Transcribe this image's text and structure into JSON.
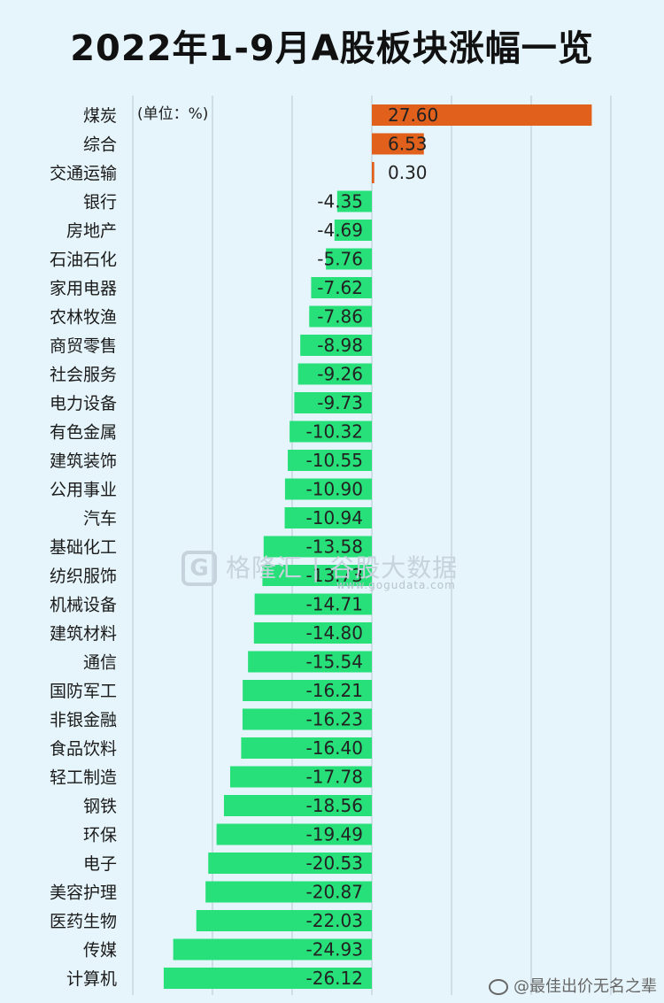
{
  "title": "2022年1-9月A股板块涨幅一览",
  "unit_note": "(单位：%)",
  "watermark": {
    "logo_letter": "G",
    "text": "格隆汇 | 谷股大数据",
    "url": "www.gogudata.com"
  },
  "credit": "@最佳出价无名之辈",
  "colors": {
    "positive": "#e0601c",
    "negative": "#27e07a",
    "background": "#e6f5fb",
    "grid": "#b8c8d0"
  },
  "chart_data": {
    "type": "bar",
    "orientation": "horizontal",
    "title": "2022年1-9月A股板块涨幅一览",
    "unit": "%",
    "categories": [
      "煤炭",
      "综合",
      "交通运输",
      "银行",
      "房地产",
      "石油石化",
      "家用电器",
      "农林牧渔",
      "商贸零售",
      "社会服务",
      "电力设备",
      "有色金属",
      "建筑装饰",
      "公用事业",
      "汽车",
      "基础化工",
      "纺织服饰",
      "机械设备",
      "建筑材料",
      "通信",
      "国防军工",
      "非银金融",
      "食品饮料",
      "轻工制造",
      "钢铁",
      "环保",
      "电子",
      "美容护理",
      "医药生物",
      "传媒",
      "计算机"
    ],
    "values": [
      27.6,
      6.53,
      0.3,
      -4.35,
      -4.69,
      -5.76,
      -7.62,
      -7.86,
      -8.98,
      -9.26,
      -9.73,
      -10.32,
      -10.55,
      -10.9,
      -10.94,
      -13.58,
      -13.73,
      -14.71,
      -14.8,
      -15.54,
      -16.21,
      -16.23,
      -16.4,
      -17.78,
      -18.56,
      -19.49,
      -20.53,
      -20.87,
      -22.03,
      -24.93,
      -26.12
    ],
    "value_labels": [
      "27.60",
      "6.53",
      "0.30",
      "-4.35",
      "-4.69",
      "-5.76",
      "-7.62",
      "-7.86",
      "-8.98",
      "-9.26",
      "-9.73",
      "-10.32",
      "-10.55",
      "-10.90",
      "-10.94",
      "-13.58",
      "-13.73",
      "-14.71",
      "-14.80",
      "-15.54",
      "-16.21",
      "-16.23",
      "-16.40",
      "-17.78",
      "-18.56",
      "-19.49",
      "-20.53",
      "-20.87",
      "-22.03",
      "-24.93",
      "-26.12"
    ],
    "xlim": [
      -30,
      30
    ],
    "grid": true
  }
}
